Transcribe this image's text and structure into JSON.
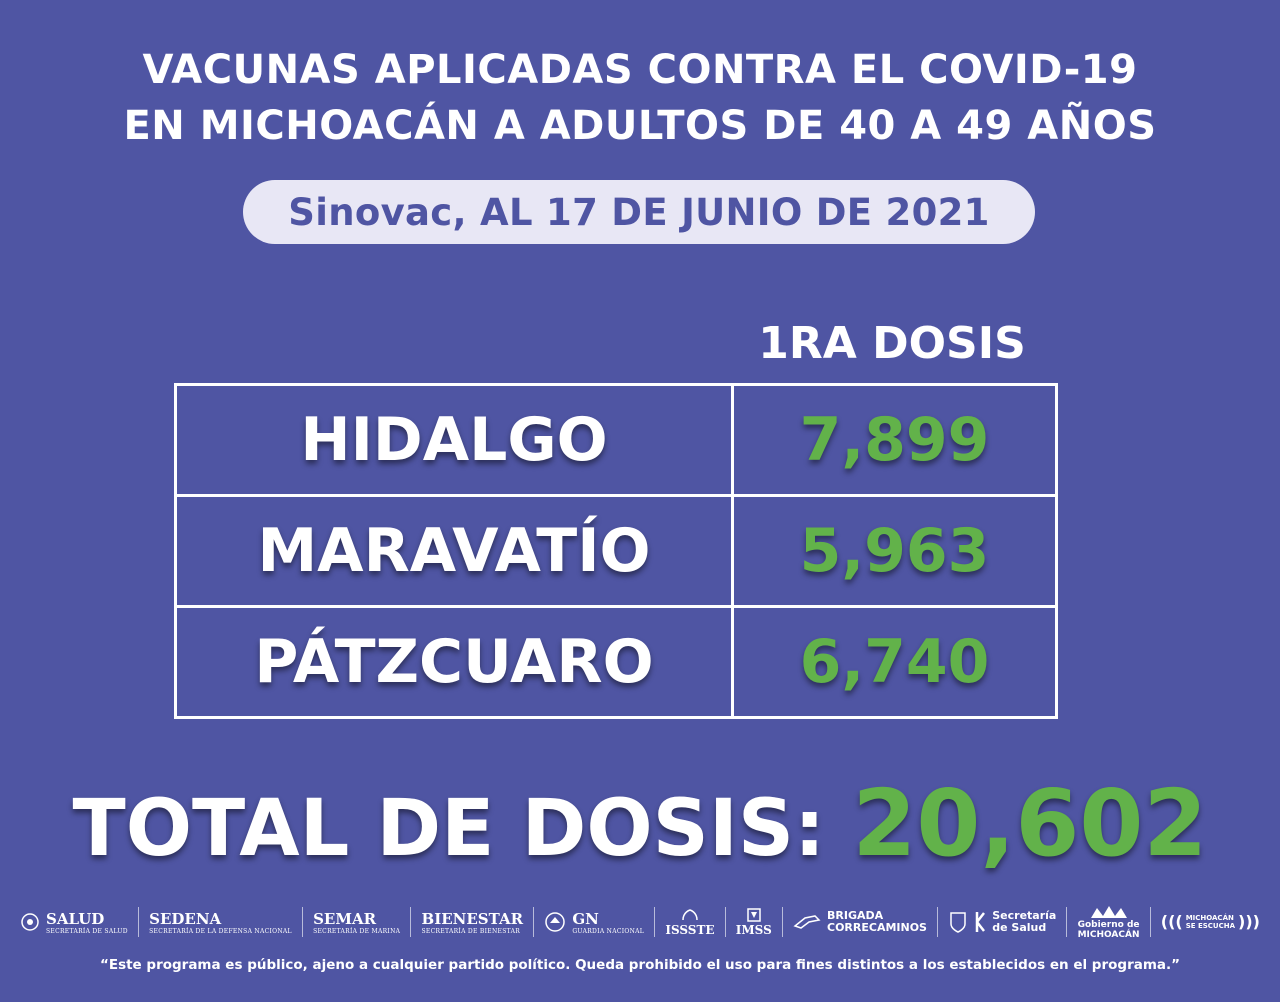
{
  "title": {
    "line1": "VACUNAS APLICADAS CONTRA EL COVID-19",
    "line2": "EN MICHOACÁN A ADULTOS DE 40 A 49 AÑOS"
  },
  "subtitle": "Sinovac, AL 17 DE JUNIO DE 2021",
  "column_header": "1RA DOSIS",
  "rows": [
    {
      "municipio": "HIDALGO",
      "dosis": "7,899"
    },
    {
      "municipio": "MARAVATÍO",
      "dosis": "5,963"
    },
    {
      "municipio": "PÁTZCUARO",
      "dosis": "6,740"
    }
  ],
  "total": {
    "label": "TOTAL DE DOSIS:",
    "value": "20,602"
  },
  "logos": {
    "salud": "SALUD",
    "salud_sub": "SECRETARÍA DE SALUD",
    "sedena": "SEDENA",
    "sedena_sub": "SECRETARÍA DE LA DEFENSA NACIONAL",
    "semar": "SEMAR",
    "semar_sub": "SECRETARÍA DE MARINA",
    "bienestar": "BIENESTAR",
    "bienestar_sub": "SECRETARÍA DE BIENESTAR",
    "gn": "GN",
    "gn_sub": "GUARDIA NACIONAL",
    "issste": "ISSSTE",
    "imss": "IMSS",
    "brigada_1": "BRIGADA",
    "brigada_2": "CORRECAMINOS",
    "secretaria_1": "Secretaría",
    "secretaria_2": "de Salud",
    "gobierno_1": "Gobierno de",
    "gobierno_2": "MICHOACÁN",
    "escucha_1": "MICHOACÁN",
    "escucha_2": "SE ESCUCHA"
  },
  "disclaimer": "“Este programa es público, ajeno a cualquier partido político. Queda prohibido el uso para fines distintos a los establecidos en el programa.”",
  "colors": {
    "background": "#4f55a3",
    "accent_green": "#62b24a",
    "pill": "#e8e7f5"
  }
}
